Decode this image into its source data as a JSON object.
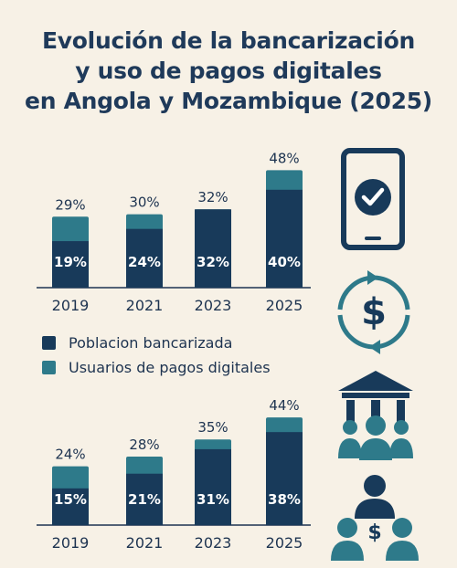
{
  "title": {
    "line1": "Evolución de la bancarización",
    "line2": "y uso de pagos digitales",
    "line3": "en Angola y Mozambique (2025)"
  },
  "colors": {
    "banked": "#183a5a",
    "digital": "#2e7a8a",
    "background": "#f7f1e6",
    "text": "#1d3350"
  },
  "legend": {
    "banked": "Poblacion bancarizada",
    "digital": "Usuarios de pagos digitales"
  },
  "icons": [
    "smartphone-check-icon",
    "dollar-cycle-icon",
    "bank-people-icon",
    "people-dollar-icon"
  ],
  "chart_data": [
    {
      "type": "bar",
      "categories": [
        "2019",
        "2021",
        "2023",
        "2025"
      ],
      "series": [
        {
          "name": "Poblacion bancarizada",
          "values": [
            19,
            24,
            32,
            40
          ],
          "labels": [
            "19%",
            "24%",
            "32%",
            "40%"
          ]
        },
        {
          "name": "Usuarios de pagos digitales",
          "values": [
            29,
            30,
            32,
            48
          ],
          "labels": [
            "29%",
            "30%",
            "32%",
            "48%"
          ]
        }
      ],
      "ylim": [
        0,
        50
      ]
    },
    {
      "type": "bar",
      "categories": [
        "2019",
        "2021",
        "2023",
        "2025"
      ],
      "series": [
        {
          "name": "Poblacion bancarizada",
          "values": [
            15,
            21,
            31,
            38
          ],
          "labels": [
            "15%",
            "21%",
            "31%",
            "38%"
          ]
        },
        {
          "name": "Usuarios de pagos digitales",
          "values": [
            24,
            28,
            35,
            44
          ],
          "labels": [
            "24%",
            "28%",
            "35%",
            "44%"
          ]
        }
      ],
      "ylim": [
        0,
        50
      ]
    }
  ]
}
